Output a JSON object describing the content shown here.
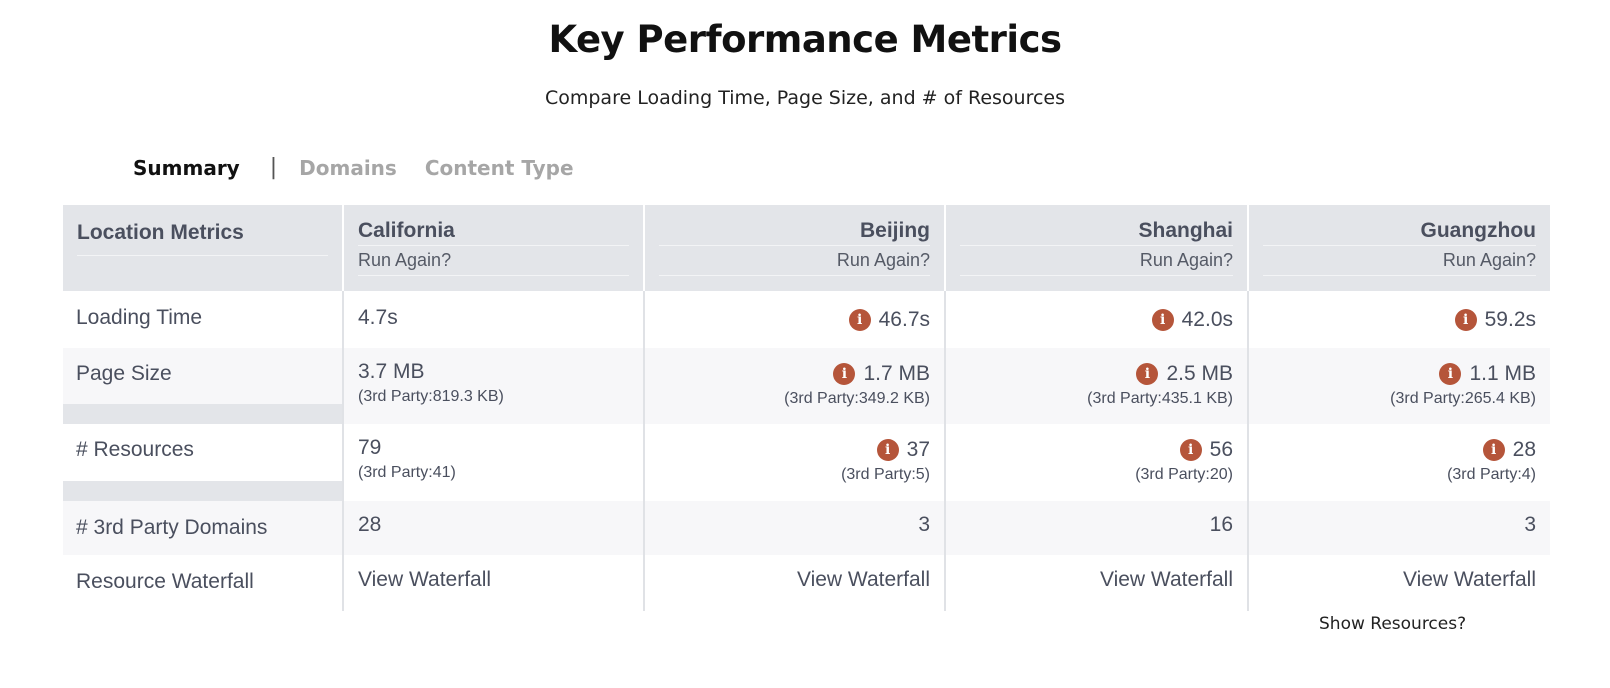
{
  "header": {
    "title": "Key Performance Metrics",
    "subtitle": "Compare Loading Time, Page Size, and # of Resources"
  },
  "tabs": [
    {
      "label": "Summary",
      "active": true
    },
    {
      "label": "|",
      "separator": true
    },
    {
      "label": "Domains",
      "active": false
    },
    {
      "label": "Content Type",
      "active": false
    }
  ],
  "table": {
    "corner_label": "Location Metrics",
    "run_again_label": "Run Again?",
    "locations": [
      "California",
      "Beijing",
      "Shanghai",
      "Guangzhou"
    ],
    "rows": {
      "loading_time": {
        "label": "Loading Time",
        "values": [
          "4.7s",
          "46.7s",
          "42.0s",
          "59.2s"
        ],
        "warnings": [
          false,
          true,
          true,
          true
        ]
      },
      "page_size": {
        "label": "Page Size",
        "values": [
          "3.7 MB",
          "1.7 MB",
          "2.5 MB",
          "1.1 MB"
        ],
        "third_party": [
          "(3rd Party:819.3 KB)",
          "(3rd Party:349.2 KB)",
          "(3rd Party:435.1 KB)",
          "(3rd Party:265.4 KB)"
        ],
        "warnings": [
          false,
          true,
          true,
          true
        ]
      },
      "resources": {
        "label": "# Resources",
        "values": [
          "79",
          "37",
          "56",
          "28"
        ],
        "third_party": [
          "(3rd Party:41)",
          "(3rd Party:5)",
          "(3rd Party:20)",
          "(3rd Party:4)"
        ],
        "warnings": [
          false,
          true,
          true,
          true
        ]
      },
      "third_party_domains": {
        "label": "# 3rd Party Domains",
        "values": [
          "28",
          "3",
          "16",
          "3"
        ]
      },
      "resource_waterfall": {
        "label": "Resource Waterfall",
        "link_label": "View Waterfall"
      }
    }
  },
  "icons": {
    "warning": "info-warning-icon",
    "warning_glyph": "i",
    "warning_color": "#b5553a"
  },
  "footer": {
    "show_resources": "Show Resources?"
  }
}
